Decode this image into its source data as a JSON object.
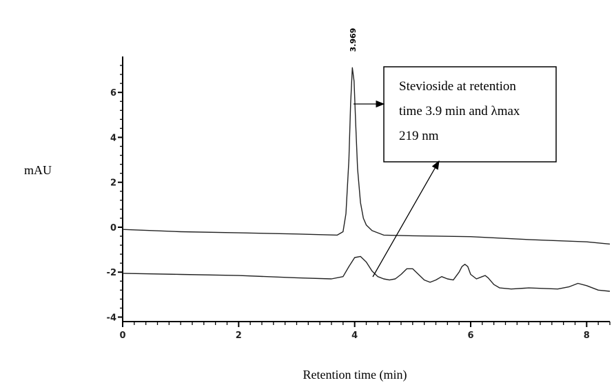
{
  "chart_data": {
    "type": "line",
    "title": "",
    "xlabel": "Retention time (min)",
    "ylabel": "mAU",
    "xlim": [
      0,
      8.4
    ],
    "ylim": [
      -4.2,
      7.6
    ],
    "x_ticks": [
      0,
      2,
      4,
      6,
      8
    ],
    "y_ticks": [
      -4,
      -2,
      0,
      2,
      4,
      6
    ],
    "grid": false,
    "legend": "none",
    "peak_label": "3.969",
    "annotation": {
      "lines": [
        "Stevioside at retention",
        "time 3.9 min and λmax",
        "219 nm"
      ]
    },
    "series": [
      {
        "x": [
          0,
          1,
          2,
          3,
          3.7,
          3.8,
          3.85,
          3.9,
          3.93,
          3.96,
          3.99,
          4.02,
          4.05,
          4.1,
          4.15,
          4.2,
          4.3,
          4.4,
          4.5,
          5,
          6,
          7,
          8,
          8.4
        ],
        "y": [
          -0.1,
          -0.2,
          -0.25,
          -0.3,
          -0.35,
          -0.2,
          0.6,
          3.0,
          5.5,
          7.1,
          6.5,
          4.5,
          2.6,
          1.1,
          0.4,
          0.1,
          -0.15,
          -0.25,
          -0.35,
          -0.38,
          -0.42,
          -0.55,
          -0.65,
          -0.75
        ]
      },
      {
        "x": [
          0,
          1,
          2,
          3,
          3.6,
          3.8,
          3.9,
          4.0,
          4.1,
          4.2,
          4.3,
          4.4,
          4.5,
          4.6,
          4.7,
          4.8,
          4.9,
          5.0,
          5.1,
          5.2,
          5.3,
          5.4,
          5.5,
          5.6,
          5.7,
          5.8,
          5.85,
          5.9,
          5.95,
          6.0,
          6.1,
          6.2,
          6.25,
          6.3,
          6.4,
          6.5,
          6.7,
          7.0,
          7.5,
          7.7,
          7.85,
          8.0,
          8.2,
          8.4
        ],
        "y": [
          -2.05,
          -2.1,
          -2.15,
          -2.25,
          -2.3,
          -2.2,
          -1.75,
          -1.35,
          -1.3,
          -1.55,
          -1.95,
          -2.2,
          -2.3,
          -2.35,
          -2.3,
          -2.1,
          -1.85,
          -1.85,
          -2.1,
          -2.35,
          -2.45,
          -2.35,
          -2.2,
          -2.3,
          -2.35,
          -2.0,
          -1.75,
          -1.65,
          -1.75,
          -2.1,
          -2.3,
          -2.2,
          -2.15,
          -2.25,
          -2.55,
          -2.7,
          -2.75,
          -2.7,
          -2.75,
          -2.65,
          -2.5,
          -2.6,
          -2.8,
          -2.85
        ]
      }
    ]
  }
}
